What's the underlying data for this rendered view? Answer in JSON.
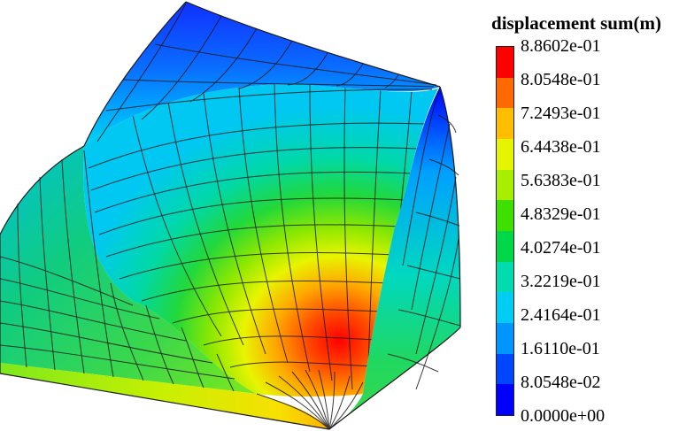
{
  "legend": {
    "title": "displacement sum(m)",
    "labels": [
      "8.8602e-01",
      "8.0548e-01",
      "7.2493e-01",
      "6.4438e-01",
      "5.6383e-01",
      "4.8329e-01",
      "4.0274e-01",
      "3.2219e-01",
      "2.4164e-01",
      "1.6110e-01",
      "8.0548e-02",
      "0.0000e+00"
    ],
    "colors": [
      "#ff0000",
      "#ff6a00",
      "#ffbf00",
      "#e5f500",
      "#a8ee00",
      "#3fe000",
      "#00d84a",
      "#00dcb0",
      "#00cdf4",
      "#0095ff",
      "#0046ff",
      "#0000ff"
    ]
  }
}
